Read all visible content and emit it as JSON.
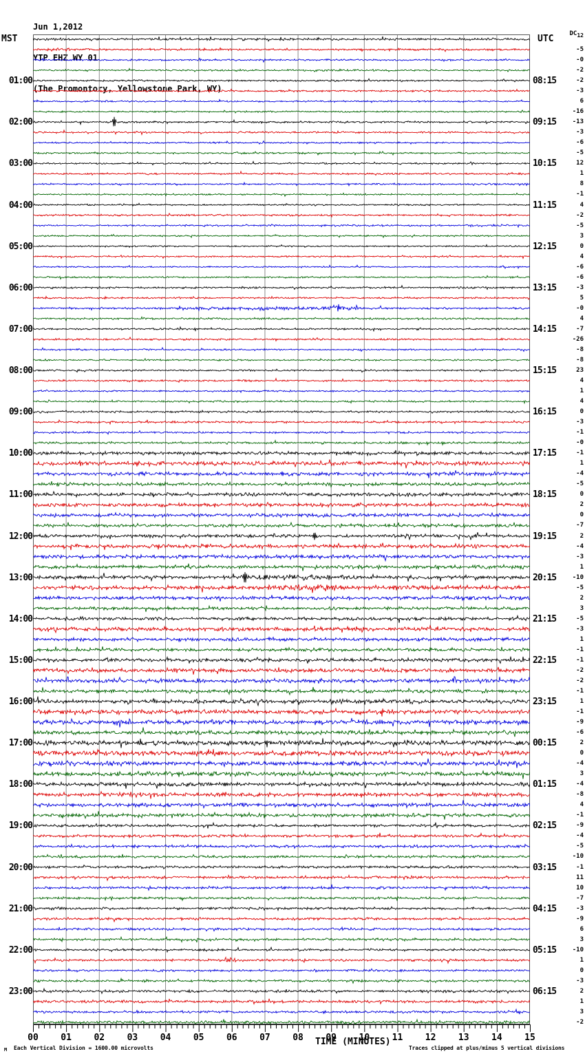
{
  "header": {
    "date": "Jun 1,2012",
    "station": "YTP EHZ WY 01",
    "location": "(The Promontory, Yellowstone Park, WY)"
  },
  "axes": {
    "left_tz": "MST",
    "right_tz": "UTC",
    "left_labels": [
      "01:00",
      "02:00",
      "03:00",
      "04:00",
      "05:00",
      "06:00",
      "07:00",
      "08:00",
      "09:00",
      "10:00",
      "11:00",
      "12:00",
      "13:00",
      "14:00",
      "15:00",
      "16:00",
      "17:00",
      "18:00",
      "19:00",
      "20:00",
      "21:00",
      "22:00",
      "23:00"
    ],
    "right_labels": [
      "08:15",
      "09:15",
      "10:15",
      "11:15",
      "12:15",
      "13:15",
      "14:15",
      "15:15",
      "16:15",
      "17:15",
      "18:15",
      "19:15",
      "20:15",
      "21:15",
      "22:15",
      "23:15",
      "00:15",
      "01:15",
      "02:15",
      "03:15",
      "04:15",
      "05:15",
      "06:15"
    ],
    "minute_tick_labels": [
      "00",
      "01",
      "02",
      "03",
      "04",
      "05",
      "06",
      "07",
      "08",
      "09",
      "10",
      "11",
      "12",
      "13",
      "14",
      "15"
    ],
    "xlabel": "TIME (MINUTES)"
  },
  "dc": {
    "label": "DC",
    "first_value": "12",
    "values": [
      "12",
      "-5",
      "-0",
      "-2",
      "-2",
      "-3",
      "6",
      "-16",
      "-13",
      "-3",
      "-6",
      "-5",
      "12",
      "1",
      "8",
      "-1",
      "4",
      "-2",
      "-5",
      "3",
      "0",
      "4",
      "-6",
      "-6",
      "-3",
      "5",
      "-0",
      "4",
      "-7",
      "-26",
      "-8",
      "-8",
      "23",
      "4",
      "1",
      "4",
      "0",
      "-3",
      "-1",
      "-0",
      "-1",
      "1",
      "-4",
      "-5",
      "0",
      "2",
      "0",
      "-7",
      "2",
      "-4",
      "-3",
      "1",
      "-10",
      "-5",
      "2",
      "3",
      "-5",
      "-3",
      "1",
      "-1",
      "-1",
      "-2",
      "-2",
      "-1",
      "1",
      "-1",
      "-9",
      "-6",
      "2",
      "0",
      "-4",
      "3",
      "-4",
      "-8",
      "4",
      "-1",
      "-9",
      "-4",
      "-5",
      "-10",
      "-1",
      "11",
      "10",
      "-7",
      "-3",
      "-9",
      "6",
      "3",
      "-10",
      "1",
      "0",
      "-3",
      "2",
      "1",
      "3",
      "-2"
    ]
  },
  "footer": {
    "left_glyph": "M",
    "scale_note": "Each Vertical Division = 1600.00 microvolts",
    "clip_note": "Traces clipped at plus/minus 5 vertical divisions"
  },
  "colors": {
    "trace_cycle": [
      "#000000",
      "#dd0000",
      "#0000dd",
      "#006400"
    ],
    "grid": "#8a8a8a",
    "border": "#555555",
    "axis": "#000000"
  },
  "chart_data": {
    "type": "line",
    "subtype": "helicorder-seismogram",
    "title": "YTP EHZ WY 01 — Jun 1,2012 — The Promontory, Yellowstone Park, WY",
    "rows": 96,
    "minutes_per_row": 15,
    "row_start_left": "00:00 MST",
    "row_end_left": "23:45 MST",
    "x_axis": {
      "label": "TIME (MINUTES)",
      "min": 0,
      "max": 15,
      "major_tick": 1,
      "minor_ticks_per_major": 6
    },
    "grid": "vertical lines every minute",
    "color_cycle": [
      "black",
      "red",
      "blue",
      "green"
    ],
    "scale": "Each Vertical Division = 1600.00 microvolts",
    "clipping": "Traces clipped at plus/minus 5 vertical divisions",
    "dc_offsets": [
      "12",
      "-5",
      "-0",
      "-2",
      "-2",
      "-3",
      "6",
      "-16",
      "-13",
      "-3",
      "-6",
      "-5",
      "12",
      "1",
      "8",
      "-1",
      "4",
      "-2",
      "-5",
      "3",
      "0",
      "4",
      "-6",
      "-6",
      "-3",
      "5",
      "-0",
      "4",
      "-7",
      "-26",
      "-8",
      "-8",
      "23",
      "4",
      "1",
      "4",
      "0",
      "-3",
      "-1",
      "-0",
      "-1",
      "1",
      "-4",
      "-5",
      "0",
      "2",
      "0",
      "-7",
      "2",
      "-4",
      "-3",
      "1",
      "-10",
      "-5",
      "2",
      "3",
      "-5",
      "-3",
      "1",
      "-1",
      "-1",
      "-2",
      "-2",
      "-1",
      "1",
      "-1",
      "-9",
      "-6",
      "2",
      "0",
      "-4",
      "3",
      "-4",
      "-8",
      "4",
      "-1",
      "-9",
      "-4",
      "-5",
      "-10",
      "-1",
      "11",
      "10",
      "-7",
      "-3",
      "-9",
      "6",
      "3",
      "-10",
      "1",
      "0",
      "-3",
      "2",
      "1",
      "3",
      "-2"
    ],
    "row_amplitudes": [
      1.5,
      1.3,
      1.2,
      1.1,
      1.2,
      1.3,
      1.1,
      1.1,
      1.3,
      1.2,
      1.1,
      1.1,
      1.1,
      1.2,
      1.1,
      1.0,
      1.0,
      1.2,
      1.1,
      1.0,
      1.0,
      1.1,
      1.0,
      1.1,
      1.2,
      1.2,
      1.4,
      1.2,
      1.2,
      1.2,
      1.1,
      1.1,
      1.2,
      1.2,
      1.1,
      1.2,
      1.3,
      1.4,
      1.3,
      1.4,
      2.4,
      2.8,
      2.4,
      2.2,
      2.4,
      2.6,
      2.4,
      2.2,
      2.2,
      2.6,
      2.4,
      2.4,
      2.4,
      2.8,
      2.4,
      2.2,
      2.2,
      2.6,
      2.4,
      2.2,
      2.4,
      2.6,
      2.6,
      2.4,
      2.8,
      3.0,
      3.0,
      2.8,
      3.2,
      3.4,
      3.2,
      3.0,
      2.6,
      2.8,
      2.6,
      2.4,
      1.8,
      1.9,
      1.8,
      1.7,
      1.7,
      1.8,
      1.7,
      1.6,
      1.6,
      1.7,
      1.6,
      1.6,
      1.4,
      1.6,
      1.5,
      1.6,
      1.7,
      1.8,
      1.7,
      1.8
    ],
    "events": [
      {
        "row": 1,
        "kind": "burst",
        "start": 0.3,
        "end": 1.2,
        "factor": 2.4
      },
      {
        "row": 8,
        "kind": "spike",
        "minute": 2.45,
        "amp": 8
      },
      {
        "row": 26,
        "kind": "burst",
        "start": 4.0,
        "end": 10.5,
        "factor": 1.8
      },
      {
        "row": 26,
        "kind": "burst",
        "start": 8.8,
        "end": 9.9,
        "factor": 2.6
      },
      {
        "row": 48,
        "kind": "spike",
        "minute": 8.5,
        "amp": 6
      },
      {
        "row": 52,
        "kind": "spike",
        "minute": 6.4,
        "amp": 10
      },
      {
        "row": 52,
        "kind": "burst",
        "start": 5.5,
        "end": 10.0,
        "factor": 1.5
      },
      {
        "row": 53,
        "kind": "burst",
        "start": 7.2,
        "end": 9.7,
        "factor": 1.9
      },
      {
        "row": 89,
        "kind": "burst",
        "start": 5.5,
        "end": 6.4,
        "factor": 2.0
      }
    ]
  }
}
